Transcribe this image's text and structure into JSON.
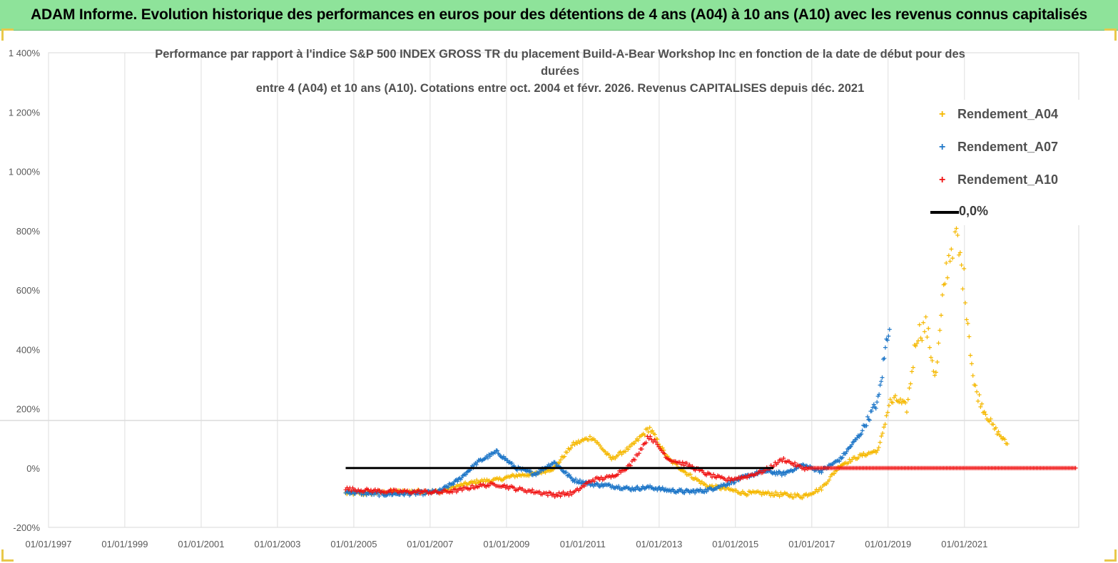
{
  "header": {
    "title": "ADAM Informe. Evolution historique des performances en euros pour des détentions de 4 ans (A04) à 10 ans (A10) avec les revenus connus capitalisés"
  },
  "chart_data": {
    "type": "scatter",
    "title_lines": [
      "Performance par rapport à l'indice S&P 500 INDEX GROSS TR  du placement Build-A-Bear Workshop Inc en fonction de la date de début pour des",
      "durées",
      "entre 4 (A04) et 10 ans (A10).  Cotations entre oct. 2004 et févr. 2026. Revenus CAPITALISES depuis déc. 2021"
    ],
    "xlabel": "",
    "ylabel": "",
    "x_range": [
      "1997-01-01",
      "2023-12-31"
    ],
    "ylim": [
      -200,
      1400
    ],
    "y_ticks": [
      "-200%",
      "0%",
      "200%",
      "400%",
      "600%",
      "800%",
      "1 000%",
      "1 200%",
      "1 400%"
    ],
    "x_ticks": [
      "01/01/1997",
      "01/01/1999",
      "01/01/2001",
      "01/01/2003",
      "01/01/2005",
      "01/01/2007",
      "01/01/2009",
      "01/01/2011",
      "01/01/2013",
      "01/01/2015",
      "01/01/2017",
      "01/01/2019",
      "01/01/2021"
    ],
    "grid": "vertical",
    "legend_position": "top-right",
    "series": [
      {
        "name": "Rendement_A04",
        "color": "#f5b800",
        "marker": "plus",
        "points": [
          [
            "2004-10-15",
            -85
          ],
          [
            "2005-04-01",
            -85
          ],
          [
            "2005-10-01",
            -82
          ],
          [
            "2006-04-01",
            -80
          ],
          [
            "2006-10-01",
            -78
          ],
          [
            "2007-04-01",
            -80
          ],
          [
            "2007-10-01",
            -60
          ],
          [
            "2008-04-01",
            -45
          ],
          [
            "2008-10-01",
            -40
          ],
          [
            "2009-04-01",
            -25
          ],
          [
            "2009-10-01",
            -20
          ],
          [
            "2010-04-01",
            0
          ],
          [
            "2010-10-01",
            80
          ],
          [
            "2011-04-01",
            105
          ],
          [
            "2011-10-01",
            30
          ],
          [
            "2012-04-01",
            70
          ],
          [
            "2012-10-01",
            135
          ],
          [
            "2013-04-01",
            30
          ],
          [
            "2013-10-01",
            -20
          ],
          [
            "2014-04-01",
            -60
          ],
          [
            "2014-10-01",
            -70
          ],
          [
            "2015-04-01",
            -85
          ],
          [
            "2015-10-01",
            -85
          ],
          [
            "2016-04-01",
            -90
          ],
          [
            "2016-10-01",
            -95
          ],
          [
            "2017-04-01",
            -70
          ],
          [
            "2017-10-01",
            10
          ],
          [
            "2018-04-01",
            40
          ],
          [
            "2018-10-01",
            60
          ],
          [
            "2019-01-15",
            220
          ],
          [
            "2019-04-01",
            230
          ],
          [
            "2019-07-01",
            200
          ],
          [
            "2019-10-01",
            450
          ],
          [
            "2020-01-01",
            480
          ],
          [
            "2020-04-01",
            300
          ],
          [
            "2020-07-01",
            650
          ],
          [
            "2020-10-01",
            800
          ],
          [
            "2021-01-01",
            620
          ],
          [
            "2021-04-01",
            280
          ],
          [
            "2021-07-01",
            200
          ],
          [
            "2021-10-01",
            140
          ],
          [
            "2022-02-15",
            80
          ]
        ]
      },
      {
        "name": "Rendement_A07",
        "color": "#1f77c8",
        "marker": "plus",
        "points": [
          [
            "2004-10-15",
            -80
          ],
          [
            "2005-04-01",
            -85
          ],
          [
            "2005-10-01",
            -88
          ],
          [
            "2006-04-01",
            -86
          ],
          [
            "2006-10-01",
            -85
          ],
          [
            "2007-04-01",
            -78
          ],
          [
            "2007-10-01",
            -40
          ],
          [
            "2008-04-01",
            20
          ],
          [
            "2008-10-01",
            55
          ],
          [
            "2009-04-01",
            0
          ],
          [
            "2009-10-01",
            -20
          ],
          [
            "2010-04-01",
            20
          ],
          [
            "2010-10-01",
            -40
          ],
          [
            "2011-04-01",
            -55
          ],
          [
            "2011-10-01",
            -60
          ],
          [
            "2012-04-01",
            -70
          ],
          [
            "2012-10-01",
            -65
          ],
          [
            "2013-04-01",
            -75
          ],
          [
            "2013-10-01",
            -80
          ],
          [
            "2014-04-01",
            -75
          ],
          [
            "2014-10-01",
            -55
          ],
          [
            "2015-04-01",
            -30
          ],
          [
            "2015-10-01",
            -10
          ],
          [
            "2016-04-01",
            -20
          ],
          [
            "2016-10-01",
            10
          ],
          [
            "2017-04-01",
            -10
          ],
          [
            "2017-10-01",
            30
          ],
          [
            "2018-04-01",
            110
          ],
          [
            "2018-10-01",
            230
          ],
          [
            "2019-01-15",
            500
          ]
        ]
      },
      {
        "name": "Rendement_A10",
        "color": "#f01010",
        "marker": "plus",
        "points": [
          [
            "2004-10-15",
            -70
          ],
          [
            "2005-04-01",
            -75
          ],
          [
            "2005-10-01",
            -78
          ],
          [
            "2006-04-01",
            -80
          ],
          [
            "2006-10-01",
            -80
          ],
          [
            "2007-04-01",
            -82
          ],
          [
            "2007-10-01",
            -75
          ],
          [
            "2008-04-01",
            -60
          ],
          [
            "2008-10-01",
            -55
          ],
          [
            "2009-04-01",
            -70
          ],
          [
            "2009-10-01",
            -80
          ],
          [
            "2010-04-01",
            -90
          ],
          [
            "2010-10-01",
            -85
          ],
          [
            "2011-04-01",
            -40
          ],
          [
            "2011-10-01",
            -30
          ],
          [
            "2012-04-01",
            10
          ],
          [
            "2012-10-01",
            110
          ],
          [
            "2013-04-01",
            30
          ],
          [
            "2013-10-01",
            10
          ],
          [
            "2014-04-01",
            -20
          ],
          [
            "2014-10-01",
            -40
          ],
          [
            "2015-04-01",
            -30
          ],
          [
            "2015-10-01",
            -10
          ],
          [
            "2016-04-01",
            30
          ],
          [
            "2016-10-01",
            0
          ],
          [
            "2017-04-01",
            0
          ],
          [
            "2018-04-01",
            0
          ],
          [
            "2019-04-01",
            0
          ],
          [
            "2020-04-01",
            0
          ],
          [
            "2021-04-01",
            0
          ],
          [
            "2022-04-01",
            0
          ],
          [
            "2023-04-01",
            0
          ],
          [
            "2023-12-01",
            0
          ]
        ]
      },
      {
        "name": "0,0%",
        "color": "#000000",
        "marker": "line",
        "points": [
          [
            "2004-10-15",
            0
          ],
          [
            "2015-12-31",
            0
          ]
        ]
      }
    ]
  }
}
